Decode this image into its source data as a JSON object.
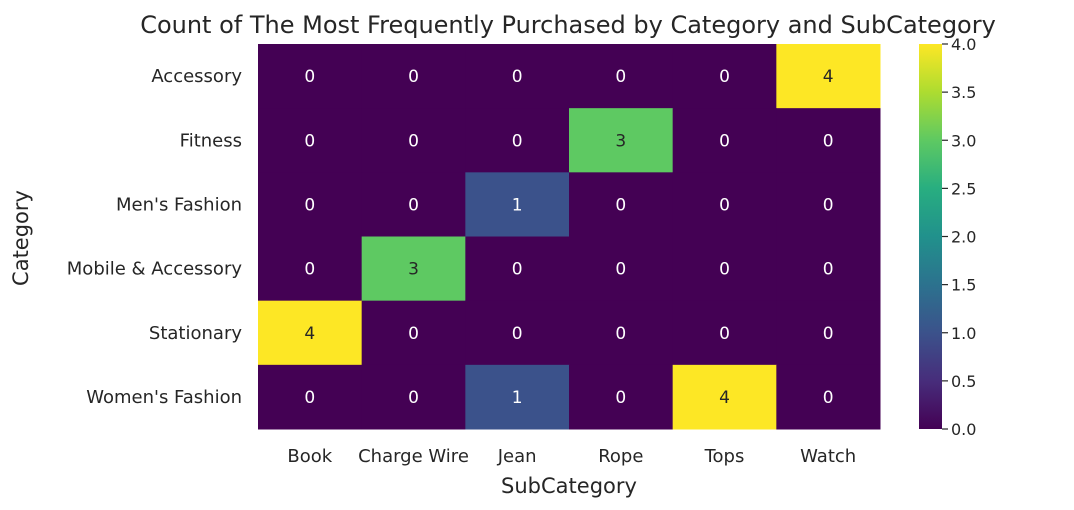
{
  "chart_data": {
    "type": "heatmap",
    "title": "Count of The Most Frequently Purchased by Category and SubCategory",
    "xlabel": "SubCategory",
    "ylabel": "Category",
    "x_categories": [
      "Book",
      "Charge Wire",
      "Jean",
      "Rope",
      "Tops",
      "Watch"
    ],
    "y_categories": [
      "Accessory",
      "Fitness",
      "Men's Fashion",
      "Mobile & Accessory",
      "Stationary",
      "Women's Fashion"
    ],
    "values": [
      [
        0,
        0,
        0,
        0,
        0,
        4
      ],
      [
        0,
        0,
        0,
        3,
        0,
        0
      ],
      [
        0,
        0,
        1,
        0,
        0,
        0
      ],
      [
        0,
        3,
        0,
        0,
        0,
        0
      ],
      [
        4,
        0,
        0,
        0,
        0,
        0
      ],
      [
        0,
        0,
        1,
        0,
        4,
        0
      ]
    ],
    "colorbar": {
      "colormap": "viridis",
      "range": [
        0.0,
        4.0
      ],
      "ticks": [
        "0.0",
        "0.5",
        "1.0",
        "1.5",
        "2.0",
        "2.5",
        "3.0",
        "3.5",
        "4.0"
      ]
    },
    "annotations": true
  }
}
